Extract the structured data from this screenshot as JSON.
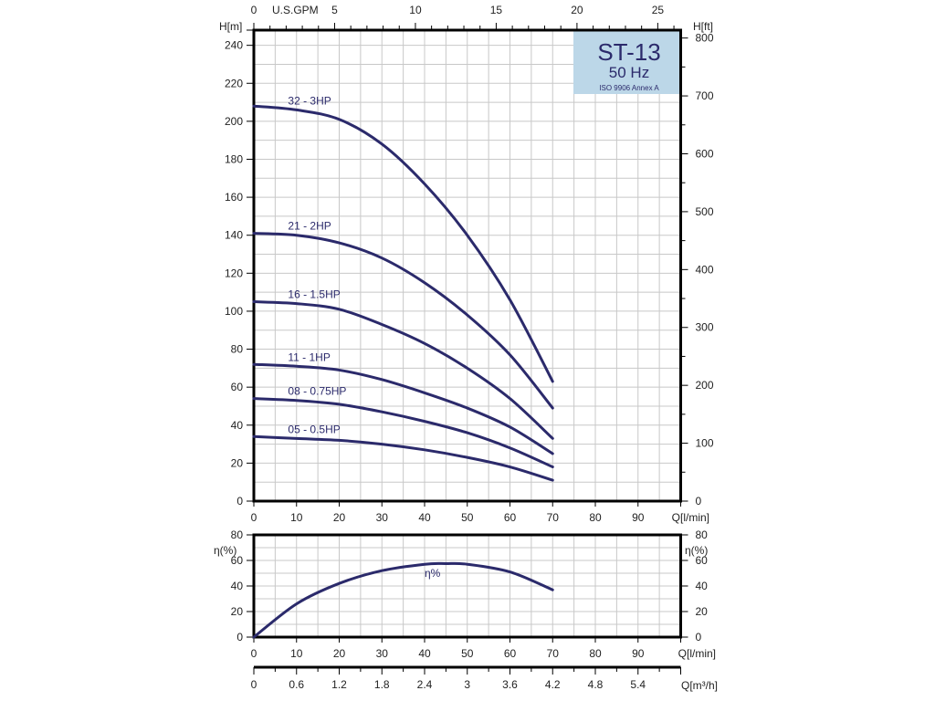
{
  "chart_data": [
    {
      "type": "line",
      "title": "ST-13",
      "subtitle": "50 Hz",
      "note": "ISO 9906 Annex A",
      "xlabel": "Q[l/min]",
      "ylabel": "H[m]",
      "ylabel_right": "H[ft]",
      "xlabel_top": "U.S.GPM",
      "xlim": [
        0,
        100
      ],
      "ylim": [
        0,
        248
      ],
      "xticks": [
        0,
        10,
        20,
        30,
        40,
        50,
        60,
        70,
        80,
        90
      ],
      "yticks": [
        0,
        20,
        40,
        60,
        80,
        100,
        120,
        140,
        160,
        180,
        200,
        220,
        240
      ],
      "yticks_right": [
        0,
        100,
        200,
        300,
        400,
        500,
        600,
        700,
        800
      ],
      "xticks_top": [
        0,
        5,
        10,
        15,
        20,
        25
      ],
      "grid": true,
      "x": [
        0,
        10,
        20,
        30,
        40,
        50,
        60,
        70
      ],
      "series": [
        {
          "name": "32 - 3HP",
          "values": [
            208,
            206,
            201,
            188,
            167,
            140,
            106,
            63
          ]
        },
        {
          "name": "21 - 2HP",
          "values": [
            141,
            140,
            136,
            128,
            115,
            98,
            77,
            49
          ]
        },
        {
          "name": "16 - 1.5HP",
          "values": [
            105,
            104,
            101,
            93,
            83,
            70,
            54,
            33
          ]
        },
        {
          "name": "11 - 1HP",
          "values": [
            72,
            71,
            69,
            64,
            57,
            49,
            39,
            25
          ]
        },
        {
          "name": "08 - 0.75HP",
          "values": [
            54,
            53,
            51,
            47,
            42,
            36,
            28,
            18
          ]
        },
        {
          "name": "05 - 0.5HP",
          "values": [
            34,
            33,
            32,
            30,
            27,
            23,
            18,
            11
          ]
        }
      ]
    },
    {
      "type": "line",
      "xlabel": "Q[l/min]",
      "ylabel": "η(%)",
      "ylabel_right": "η(%)",
      "xlabel_bottom2": "Q[m³/h]",
      "xlim": [
        0,
        100
      ],
      "ylim": [
        0,
        80
      ],
      "xticks": [
        0,
        10,
        20,
        30,
        40,
        50,
        60,
        70,
        80,
        90
      ],
      "yticks": [
        0,
        20,
        40,
        60,
        80
      ],
      "xticks_m3h": [
        "0",
        "0.6",
        "1.2",
        "1.8",
        "2.4",
        "3",
        "3.6",
        "4.2",
        "4.8",
        "5.4"
      ],
      "grid": true,
      "series": [
        {
          "name": "η%",
          "x": [
            0,
            10,
            20,
            30,
            40,
            45,
            50,
            60,
            70
          ],
          "values": [
            0,
            26,
            42,
            52,
            57,
            57.5,
            57,
            51,
            37
          ]
        }
      ]
    }
  ],
  "colors": {
    "curve": "#2b2a6b",
    "titlebox": "#bcd7e8",
    "grid": "#c8c8c8"
  }
}
